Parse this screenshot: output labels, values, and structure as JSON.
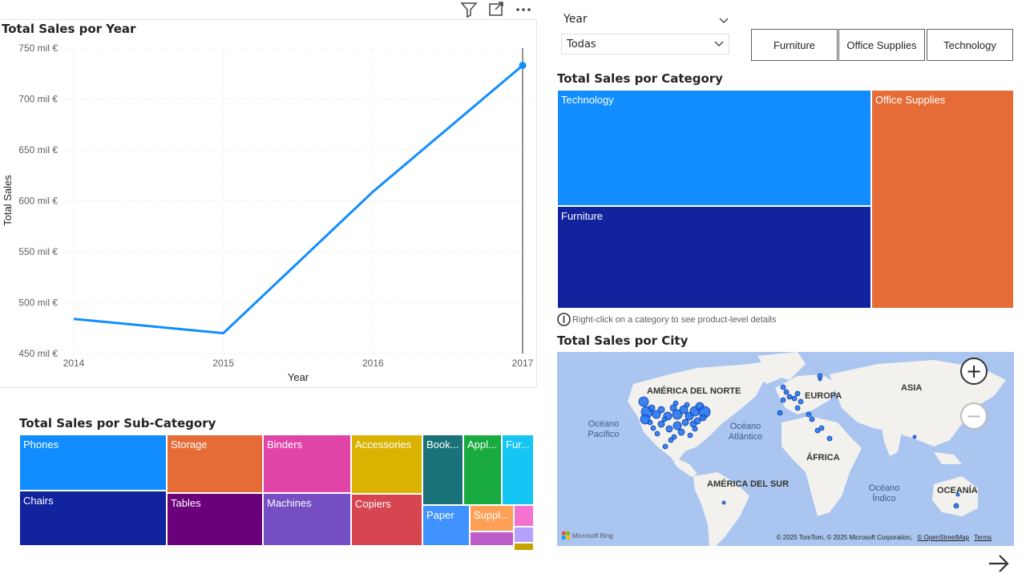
{
  "header_icons": [
    "filter-icon",
    "focus-mode-icon",
    "more-options-icon"
  ],
  "line_chart": {
    "title": "Total Sales por Year",
    "chart_data": {
      "type": "line",
      "x": [
        "2014",
        "2015",
        "2016",
        "2017"
      ],
      "series": [
        {
          "values": [
            484,
            470,
            609,
            733
          ]
        }
      ],
      "ylim": [
        450,
        750
      ],
      "yticks": [
        "750 mil €",
        "700 mil €",
        "650 mil €",
        "600 mil €",
        "550 mil €",
        "500 mil €",
        "450 mil €"
      ],
      "xlabel": "Year",
      "ylabel": "Total Sales",
      "grid": true,
      "color": "#118DFF"
    }
  },
  "slicer": {
    "header": "Year",
    "selected": "Todas"
  },
  "category_buttons": [
    "Furniture",
    "Office Supplies",
    "Technology"
  ],
  "category_treemap": {
    "title": "Total Sales por Category",
    "cells": [
      {
        "label": "Technology",
        "color": "#118DFF"
      },
      {
        "label": "Furniture",
        "color": "#12239E"
      },
      {
        "label": "Office Supplies",
        "color": "#E66C37"
      }
    ]
  },
  "info_text": "Right-click on a category to see product-level details",
  "map": {
    "title": "Total Sales por City",
    "labels": [
      "AMÉRICA DEL NORTE",
      "EUROPA",
      "ASIA",
      "ÁFRICA",
      "AMÉRICA DEL SUR",
      "OCEANÍA"
    ],
    "oceans": [
      "Océano Pacífico",
      "Océano Atlántico",
      "Océano Índico"
    ],
    "zoom_in": "+",
    "zoom_out": "−",
    "provider": "Microsoft Bing",
    "copyright": "© 2025 TomTom, © 2025 Microsoft Corporation,",
    "osm": "© OpenStreetMap",
    "terms": "Terms"
  },
  "subcategory_treemap": {
    "title": "Total Sales por Sub-Category",
    "cells": [
      {
        "label": "Phones",
        "color": "#118DFF"
      },
      {
        "label": "Chairs",
        "color": "#12239E"
      },
      {
        "label": "Storage",
        "color": "#E66C37"
      },
      {
        "label": "Tables",
        "color": "#6B007B"
      },
      {
        "label": "Binders",
        "color": "#E044A7"
      },
      {
        "label": "Machines",
        "color": "#744EC2"
      },
      {
        "label": "Accessories",
        "color": "#D9B300"
      },
      {
        "label": "Copiers",
        "color": "#D64550"
      },
      {
        "label": "Book...",
        "color": "#197278"
      },
      {
        "label": "Appl...",
        "color": "#1AAB40"
      },
      {
        "label": "Fur...",
        "color": "#15C6F4"
      },
      {
        "label": "Paper",
        "color": "#4092FF"
      },
      {
        "label": "Suppl...",
        "color": "#FFA058"
      },
      {
        "label": "",
        "color": "#BE5DC9"
      },
      {
        "label": "",
        "color": "#F472D0"
      },
      {
        "label": "",
        "color": "#B5A1FF"
      },
      {
        "label": "",
        "color": "#C4A200"
      }
    ]
  },
  "next_page_icon": "arrow-right-icon"
}
